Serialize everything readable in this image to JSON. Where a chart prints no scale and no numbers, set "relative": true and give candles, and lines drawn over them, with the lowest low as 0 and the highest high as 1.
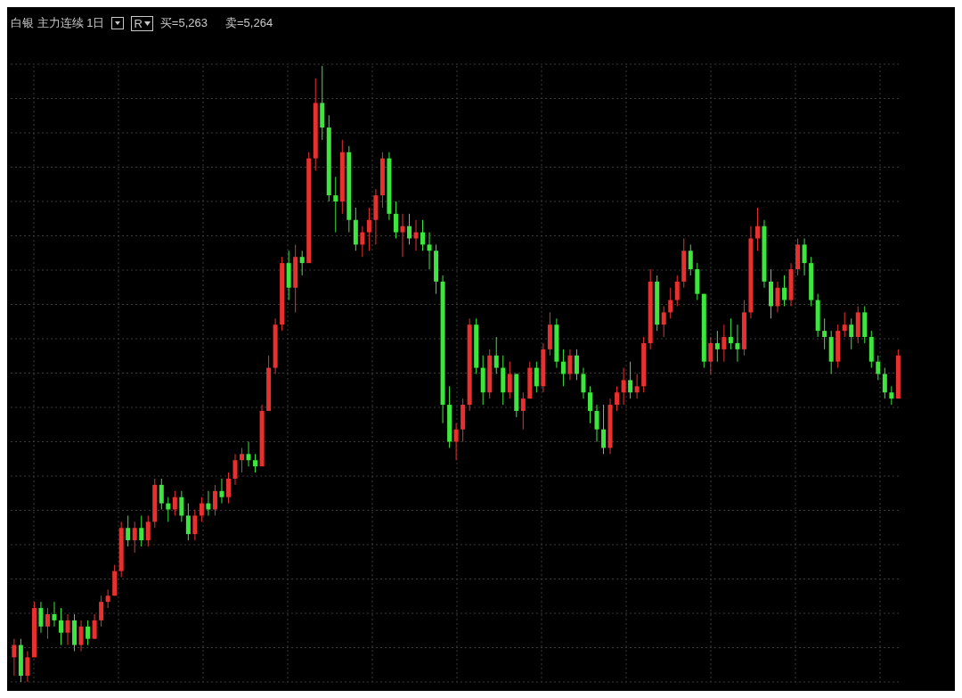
{
  "chart_data": {
    "type": "candlestick",
    "title": "白银 主力连续 1日",
    "annotations": [
      "R",
      "买=5,263",
      "卖=5,264"
    ],
    "relative": true,
    "grid": true,
    "tick_labels": false,
    "categories": [
      null,
      null,
      null,
      null,
      null,
      null,
      null,
      null,
      null,
      null,
      null,
      null,
      null,
      null,
      null,
      null,
      null,
      null,
      null,
      null,
      null,
      null,
      null,
      null,
      null,
      null,
      null,
      null,
      null,
      null,
      null,
      null,
      null,
      null,
      null,
      null,
      null,
      null,
      null,
      null,
      null,
      null,
      null,
      null,
      null,
      null,
      null,
      null,
      null,
      null,
      null,
      null,
      null,
      null,
      null,
      null,
      null,
      null,
      null,
      null,
      null,
      null,
      null,
      null,
      null,
      null,
      null,
      null,
      null,
      null,
      null,
      null,
      null,
      null,
      null,
      null,
      null,
      null,
      null,
      null,
      null,
      null,
      null,
      null,
      null,
      null,
      null,
      null,
      null,
      null,
      null,
      null,
      null,
      null,
      null,
      null,
      null,
      null,
      null,
      null,
      null,
      null,
      null,
      null,
      null,
      null,
      null,
      null,
      null,
      null,
      null,
      null,
      null,
      null,
      null,
      null,
      null,
      null,
      null,
      null,
      null,
      null,
      null,
      null,
      null,
      null,
      null,
      null,
      null,
      null,
      null,
      null,
      null
    ],
    "ohlc": [
      [
        0.04,
        0.07,
        0.01,
        0.06
      ],
      [
        0.06,
        0.07,
        0.0,
        0.01
      ],
      [
        0.01,
        0.05,
        0.0,
        0.04
      ],
      [
        0.04,
        0.13,
        0.04,
        0.12
      ],
      [
        0.12,
        0.13,
        0.08,
        0.09
      ],
      [
        0.09,
        0.12,
        0.07,
        0.11
      ],
      [
        0.11,
        0.13,
        0.09,
        0.1
      ],
      [
        0.1,
        0.12,
        0.06,
        0.08
      ],
      [
        0.08,
        0.11,
        0.06,
        0.1
      ],
      [
        0.1,
        0.11,
        0.05,
        0.06
      ],
      [
        0.06,
        0.1,
        0.05,
        0.09
      ],
      [
        0.09,
        0.1,
        0.06,
        0.07
      ],
      [
        0.07,
        0.11,
        0.07,
        0.1
      ],
      [
        0.1,
        0.14,
        0.09,
        0.13
      ],
      [
        0.13,
        0.15,
        0.12,
        0.14
      ],
      [
        0.14,
        0.19,
        0.14,
        0.18
      ],
      [
        0.18,
        0.26,
        0.17,
        0.25
      ],
      [
        0.25,
        0.27,
        0.22,
        0.23
      ],
      [
        0.23,
        0.26,
        0.21,
        0.25
      ],
      [
        0.25,
        0.27,
        0.22,
        0.23
      ],
      [
        0.23,
        0.27,
        0.22,
        0.26
      ],
      [
        0.26,
        0.33,
        0.25,
        0.32
      ],
      [
        0.32,
        0.33,
        0.28,
        0.29
      ],
      [
        0.29,
        0.3,
        0.26,
        0.28
      ],
      [
        0.28,
        0.31,
        0.27,
        0.3
      ],
      [
        0.3,
        0.31,
        0.26,
        0.27
      ],
      [
        0.27,
        0.29,
        0.23,
        0.24
      ],
      [
        0.24,
        0.28,
        0.23,
        0.27
      ],
      [
        0.27,
        0.3,
        0.26,
        0.29
      ],
      [
        0.29,
        0.31,
        0.27,
        0.28
      ],
      [
        0.28,
        0.32,
        0.27,
        0.31
      ],
      [
        0.31,
        0.33,
        0.29,
        0.3
      ],
      [
        0.3,
        0.34,
        0.29,
        0.33
      ],
      [
        0.33,
        0.37,
        0.32,
        0.36
      ],
      [
        0.36,
        0.38,
        0.34,
        0.37
      ],
      [
        0.37,
        0.39,
        0.35,
        0.36
      ],
      [
        0.36,
        0.37,
        0.34,
        0.35
      ],
      [
        0.35,
        0.45,
        0.35,
        0.44
      ],
      [
        0.44,
        0.53,
        0.44,
        0.51
      ],
      [
        0.51,
        0.59,
        0.5,
        0.58
      ],
      [
        0.58,
        0.69,
        0.57,
        0.68
      ],
      [
        0.68,
        0.7,
        0.62,
        0.64
      ],
      [
        0.64,
        0.71,
        0.6,
        0.69
      ],
      [
        0.69,
        0.7,
        0.66,
        0.68
      ],
      [
        0.68,
        0.86,
        0.68,
        0.85
      ],
      [
        0.85,
        0.98,
        0.83,
        0.94
      ],
      [
        0.94,
        1.0,
        0.88,
        0.9
      ],
      [
        0.9,
        0.92,
        0.78,
        0.79
      ],
      [
        0.79,
        0.82,
        0.73,
        0.78
      ],
      [
        0.78,
        0.88,
        0.76,
        0.86
      ],
      [
        0.86,
        0.87,
        0.73,
        0.75
      ],
      [
        0.75,
        0.77,
        0.7,
        0.71
      ],
      [
        0.71,
        0.74,
        0.69,
        0.73
      ],
      [
        0.73,
        0.77,
        0.7,
        0.75
      ],
      [
        0.75,
        0.8,
        0.71,
        0.79
      ],
      [
        0.79,
        0.86,
        0.77,
        0.85
      ],
      [
        0.85,
        0.86,
        0.75,
        0.76
      ],
      [
        0.76,
        0.78,
        0.72,
        0.73
      ],
      [
        0.73,
        0.76,
        0.69,
        0.74
      ],
      [
        0.74,
        0.76,
        0.71,
        0.72
      ],
      [
        0.72,
        0.75,
        0.7,
        0.73
      ],
      [
        0.73,
        0.75,
        0.7,
        0.71
      ],
      [
        0.71,
        0.73,
        0.67,
        0.7
      ],
      [
        0.7,
        0.71,
        0.63,
        0.65
      ],
      [
        0.65,
        0.66,
        0.42,
        0.45
      ],
      [
        0.45,
        0.48,
        0.38,
        0.39
      ],
      [
        0.39,
        0.42,
        0.36,
        0.41
      ],
      [
        0.41,
        0.46,
        0.39,
        0.45
      ],
      [
        0.45,
        0.59,
        0.44,
        0.58
      ],
      [
        0.58,
        0.59,
        0.5,
        0.51
      ],
      [
        0.51,
        0.53,
        0.45,
        0.47
      ],
      [
        0.47,
        0.54,
        0.46,
        0.53
      ],
      [
        0.53,
        0.56,
        0.5,
        0.51
      ],
      [
        0.51,
        0.53,
        0.45,
        0.47
      ],
      [
        0.47,
        0.52,
        0.46,
        0.5
      ],
      [
        0.5,
        0.5,
        0.43,
        0.44
      ],
      [
        0.44,
        0.47,
        0.41,
        0.46
      ],
      [
        0.46,
        0.52,
        0.46,
        0.51
      ],
      [
        0.51,
        0.52,
        0.47,
        0.48
      ],
      [
        0.48,
        0.55,
        0.47,
        0.54
      ],
      [
        0.54,
        0.6,
        0.53,
        0.58
      ],
      [
        0.58,
        0.59,
        0.51,
        0.52
      ],
      [
        0.52,
        0.54,
        0.48,
        0.5
      ],
      [
        0.5,
        0.54,
        0.49,
        0.53
      ],
      [
        0.53,
        0.54,
        0.49,
        0.5
      ],
      [
        0.5,
        0.51,
        0.46,
        0.47
      ],
      [
        0.47,
        0.48,
        0.42,
        0.44
      ],
      [
        0.44,
        0.45,
        0.39,
        0.41
      ],
      [
        0.41,
        0.45,
        0.37,
        0.38
      ],
      [
        0.38,
        0.46,
        0.37,
        0.45
      ],
      [
        0.45,
        0.48,
        0.44,
        0.47
      ],
      [
        0.47,
        0.51,
        0.45,
        0.49
      ],
      [
        0.49,
        0.52,
        0.46,
        0.47
      ],
      [
        0.47,
        0.5,
        0.46,
        0.48
      ],
      [
        0.48,
        0.56,
        0.47,
        0.55
      ],
      [
        0.55,
        0.67,
        0.54,
        0.65
      ],
      [
        0.65,
        0.66,
        0.57,
        0.58
      ],
      [
        0.58,
        0.61,
        0.56,
        0.6
      ],
      [
        0.6,
        0.64,
        0.59,
        0.62
      ],
      [
        0.62,
        0.66,
        0.61,
        0.65
      ],
      [
        0.65,
        0.72,
        0.64,
        0.7
      ],
      [
        0.7,
        0.71,
        0.66,
        0.67
      ],
      [
        0.67,
        0.68,
        0.62,
        0.63
      ],
      [
        0.63,
        0.63,
        0.51,
        0.52
      ],
      [
        0.52,
        0.56,
        0.5,
        0.55
      ],
      [
        0.55,
        0.57,
        0.52,
        0.54
      ],
      [
        0.54,
        0.58,
        0.52,
        0.56
      ],
      [
        0.56,
        0.59,
        0.54,
        0.55
      ],
      [
        0.55,
        0.58,
        0.52,
        0.54
      ],
      [
        0.54,
        0.62,
        0.53,
        0.6
      ],
      [
        0.6,
        0.74,
        0.59,
        0.72
      ],
      [
        0.72,
        0.77,
        0.7,
        0.74
      ],
      [
        0.74,
        0.75,
        0.64,
        0.65
      ],
      [
        0.65,
        0.67,
        0.59,
        0.61
      ],
      [
        0.61,
        0.65,
        0.6,
        0.64
      ],
      [
        0.64,
        0.66,
        0.61,
        0.62
      ],
      [
        0.62,
        0.68,
        0.61,
        0.67
      ],
      [
        0.67,
        0.72,
        0.66,
        0.71
      ],
      [
        0.71,
        0.72,
        0.66,
        0.68
      ],
      [
        0.68,
        0.69,
        0.61,
        0.62
      ],
      [
        0.62,
        0.63,
        0.56,
        0.57
      ],
      [
        0.57,
        0.59,
        0.54,
        0.56
      ],
      [
        0.56,
        0.57,
        0.5,
        0.52
      ],
      [
        0.52,
        0.58,
        0.51,
        0.57
      ],
      [
        0.57,
        0.6,
        0.56,
        0.58
      ],
      [
        0.58,
        0.59,
        0.54,
        0.56
      ],
      [
        0.56,
        0.61,
        0.55,
        0.6
      ],
      [
        0.6,
        0.61,
        0.55,
        0.56
      ],
      [
        0.56,
        0.57,
        0.51,
        0.52
      ],
      [
        0.52,
        0.53,
        0.49,
        0.5
      ],
      [
        0.5,
        0.51,
        0.46,
        0.47
      ],
      [
        0.47,
        0.48,
        0.45,
        0.46
      ],
      [
        0.46,
        0.54,
        0.46,
        0.53
      ]
    ],
    "colors": [
      "#e8312f",
      "#3ce63c",
      "#e8312f",
      "#e8312f",
      "#3ce63c",
      "#e8312f",
      "#3ce63c",
      "#3ce63c",
      "#e8312f",
      "#3ce63c",
      "#e8312f",
      "#3ce63c",
      "#e8312f",
      "#e8312f",
      "#e8312f",
      "#e8312f",
      "#e8312f",
      "#3ce63c",
      "#e8312f",
      "#3ce63c",
      "#e8312f",
      "#e8312f",
      "#3ce63c",
      "#3ce63c",
      "#e8312f",
      "#3ce63c",
      "#3ce63c",
      "#e8312f",
      "#e8312f",
      "#3ce63c",
      "#e8312f",
      "#3ce63c",
      "#e8312f",
      "#e8312f",
      "#e8312f",
      "#3ce63c",
      "#3ce63c",
      "#e8312f",
      "#e8312f",
      "#e8312f",
      "#e8312f",
      "#3ce63c",
      "#e8312f",
      "#3ce63c",
      "#e8312f",
      "#e8312f",
      "#3ce63c",
      "#3ce63c",
      "#3ce63c",
      "#e8312f",
      "#3ce63c",
      "#3ce63c",
      "#e8312f",
      "#e8312f",
      "#e8312f",
      "#e8312f",
      "#3ce63c",
      "#3ce63c",
      "#e8312f",
      "#3ce63c",
      "#e8312f",
      "#3ce63c",
      "#3ce63c",
      "#3ce63c",
      "#3ce63c",
      "#3ce63c",
      "#e8312f",
      "#e8312f",
      "#e8312f",
      "#3ce63c",
      "#3ce63c",
      "#e8312f",
      "#3ce63c",
      "#3ce63c",
      "#e8312f",
      "#3ce63c",
      "#e8312f",
      "#e8312f",
      "#3ce63c",
      "#e8312f",
      "#e8312f",
      "#3ce63c",
      "#3ce63c",
      "#e8312f",
      "#3ce63c",
      "#3ce63c",
      "#3ce63c",
      "#3ce63c",
      "#3ce63c",
      "#e8312f",
      "#e8312f",
      "#e8312f",
      "#3ce63c",
      "#e8312f",
      "#e8312f",
      "#e8312f",
      "#3ce63c",
      "#e8312f",
      "#e8312f",
      "#e8312f",
      "#e8312f",
      "#3ce63c",
      "#3ce63c",
      "#3ce63c",
      "#e8312f",
      "#3ce63c",
      "#e8312f",
      "#3ce63c",
      "#3ce63c",
      "#e8312f",
      "#e8312f",
      "#e8312f",
      "#3ce63c",
      "#3ce63c",
      "#e8312f",
      "#3ce63c",
      "#e8312f",
      "#e8312f",
      "#3ce63c",
      "#3ce63c",
      "#3ce63c",
      "#3ce63c",
      "#3ce63c",
      "#e8312f",
      "#e8312f",
      "#3ce63c",
      "#e8312f",
      "#3ce63c",
      "#3ce63c",
      "#3ce63c",
      "#3ce63c",
      "#3ce63c",
      "#e8312f"
    ]
  }
}
